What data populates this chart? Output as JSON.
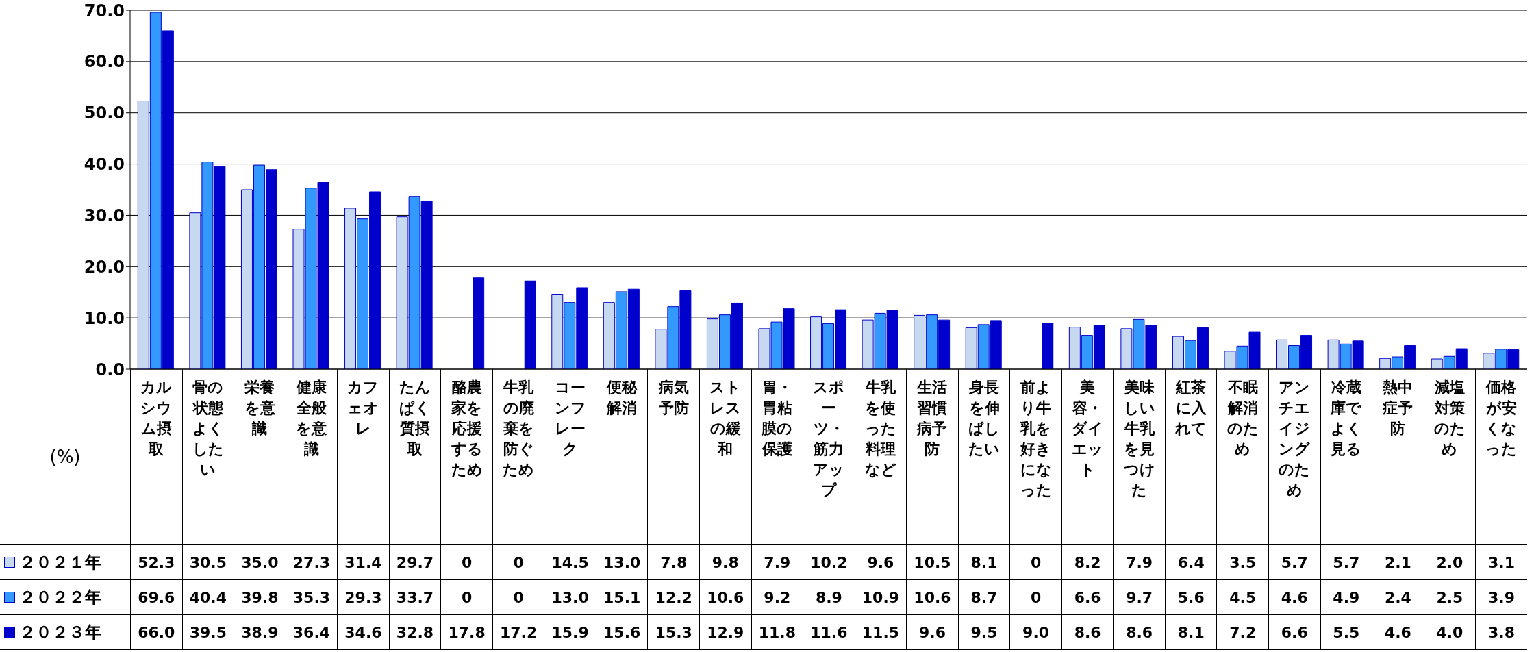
{
  "chart_data": {
    "type": "bar",
    "ylabel": "(%)",
    "categories": [
      "カルシウム摂取",
      "骨の状態よくしたい",
      "栄養を意識",
      "健康全般を意識",
      "カフェオレ",
      "たんぱく質摂取",
      "酪農家を応援するため",
      "牛乳の廃棄を防ぐため",
      "コーンフレーク",
      "便秘解消",
      "病気予防",
      "ストレスの緩和",
      "胃・胃粘膜の保護",
      "スポーツ・筋力アップ",
      "牛乳を使った料理など",
      "生活習慣病予防",
      "身長を伸ばしたい",
      "前より牛乳を好きになった",
      "美容・ダイエット",
      "美味しい牛乳を見つけた",
      "紅茶に入れて",
      "不眠解消のため",
      "アンチエイジングのため",
      "冷蔵庫でよく見る",
      "熱中症予防",
      "減塩対策のため",
      "価格が安くなった"
    ],
    "series": [
      {
        "name": "２０２１年",
        "color": "#c6d9f1",
        "values": [
          52.3,
          30.5,
          35.0,
          27.3,
          31.4,
          29.7,
          0,
          0,
          14.5,
          13.0,
          7.8,
          9.8,
          7.9,
          10.2,
          9.6,
          10.5,
          8.1,
          0,
          8.2,
          7.9,
          6.4,
          3.5,
          5.7,
          5.7,
          2.1,
          2.0,
          3.1
        ],
        "value_labels": [
          "52.3",
          "30.5",
          "35.0",
          "27.3",
          "31.4",
          "29.7",
          "0",
          "0",
          "14.5",
          "13.0",
          "7.8",
          "9.8",
          "7.9",
          "10.2",
          "9.6",
          "10.5",
          "8.1",
          "0",
          "8.2",
          "7.9",
          "6.4",
          "3.5",
          "5.7",
          "5.7",
          "2.1",
          "2.0",
          "3.1"
        ]
      },
      {
        "name": "２０２２年",
        "color": "#3399ff",
        "values": [
          69.6,
          40.4,
          39.8,
          35.3,
          29.3,
          33.7,
          0,
          0,
          13.0,
          15.1,
          12.2,
          10.6,
          9.2,
          8.9,
          10.9,
          10.6,
          8.7,
          0,
          6.6,
          9.7,
          5.6,
          4.5,
          4.6,
          4.9,
          2.4,
          2.5,
          3.9
        ],
        "value_labels": [
          "69.6",
          "40.4",
          "39.8",
          "35.3",
          "29.3",
          "33.7",
          "0",
          "0",
          "13.0",
          "15.1",
          "12.2",
          "10.6",
          "9.2",
          "8.9",
          "10.9",
          "10.6",
          "8.7",
          "0",
          "6.6",
          "9.7",
          "5.6",
          "4.5",
          "4.6",
          "4.9",
          "2.4",
          "2.5",
          "3.9"
        ]
      },
      {
        "name": "２０２３年",
        "color": "#0000cc",
        "values": [
          66.0,
          39.5,
          38.9,
          36.4,
          34.6,
          32.8,
          17.8,
          17.2,
          15.9,
          15.6,
          15.3,
          12.9,
          11.8,
          11.6,
          11.5,
          9.6,
          9.5,
          9.0,
          8.6,
          8.6,
          8.1,
          7.2,
          6.6,
          5.5,
          4.6,
          4.0,
          3.8
        ],
        "value_labels": [
          "66.0",
          "39.5",
          "38.9",
          "36.4",
          "34.6",
          "32.8",
          "17.8",
          "17.2",
          "15.9",
          "15.6",
          "15.3",
          "12.9",
          "11.8",
          "11.6",
          "11.5",
          "9.6",
          "9.5",
          "9.0",
          "8.6",
          "8.6",
          "8.1",
          "7.2",
          "6.6",
          "5.5",
          "4.6",
          "4.0",
          "3.8"
        ]
      }
    ],
    "ylim": [
      0,
      70
    ],
    "yticks": [
      {
        "value": 0,
        "label": "0.0"
      },
      {
        "value": 10,
        "label": "10.0"
      },
      {
        "value": 20,
        "label": "20.0"
      },
      {
        "value": 30,
        "label": "30.0"
      },
      {
        "value": 40,
        "label": "40.0"
      },
      {
        "value": 50,
        "label": "50.0"
      },
      {
        "value": 60,
        "label": "60.0"
      },
      {
        "value": 70,
        "label": "70.0"
      }
    ],
    "grid": "y",
    "legend": "bottom left"
  }
}
